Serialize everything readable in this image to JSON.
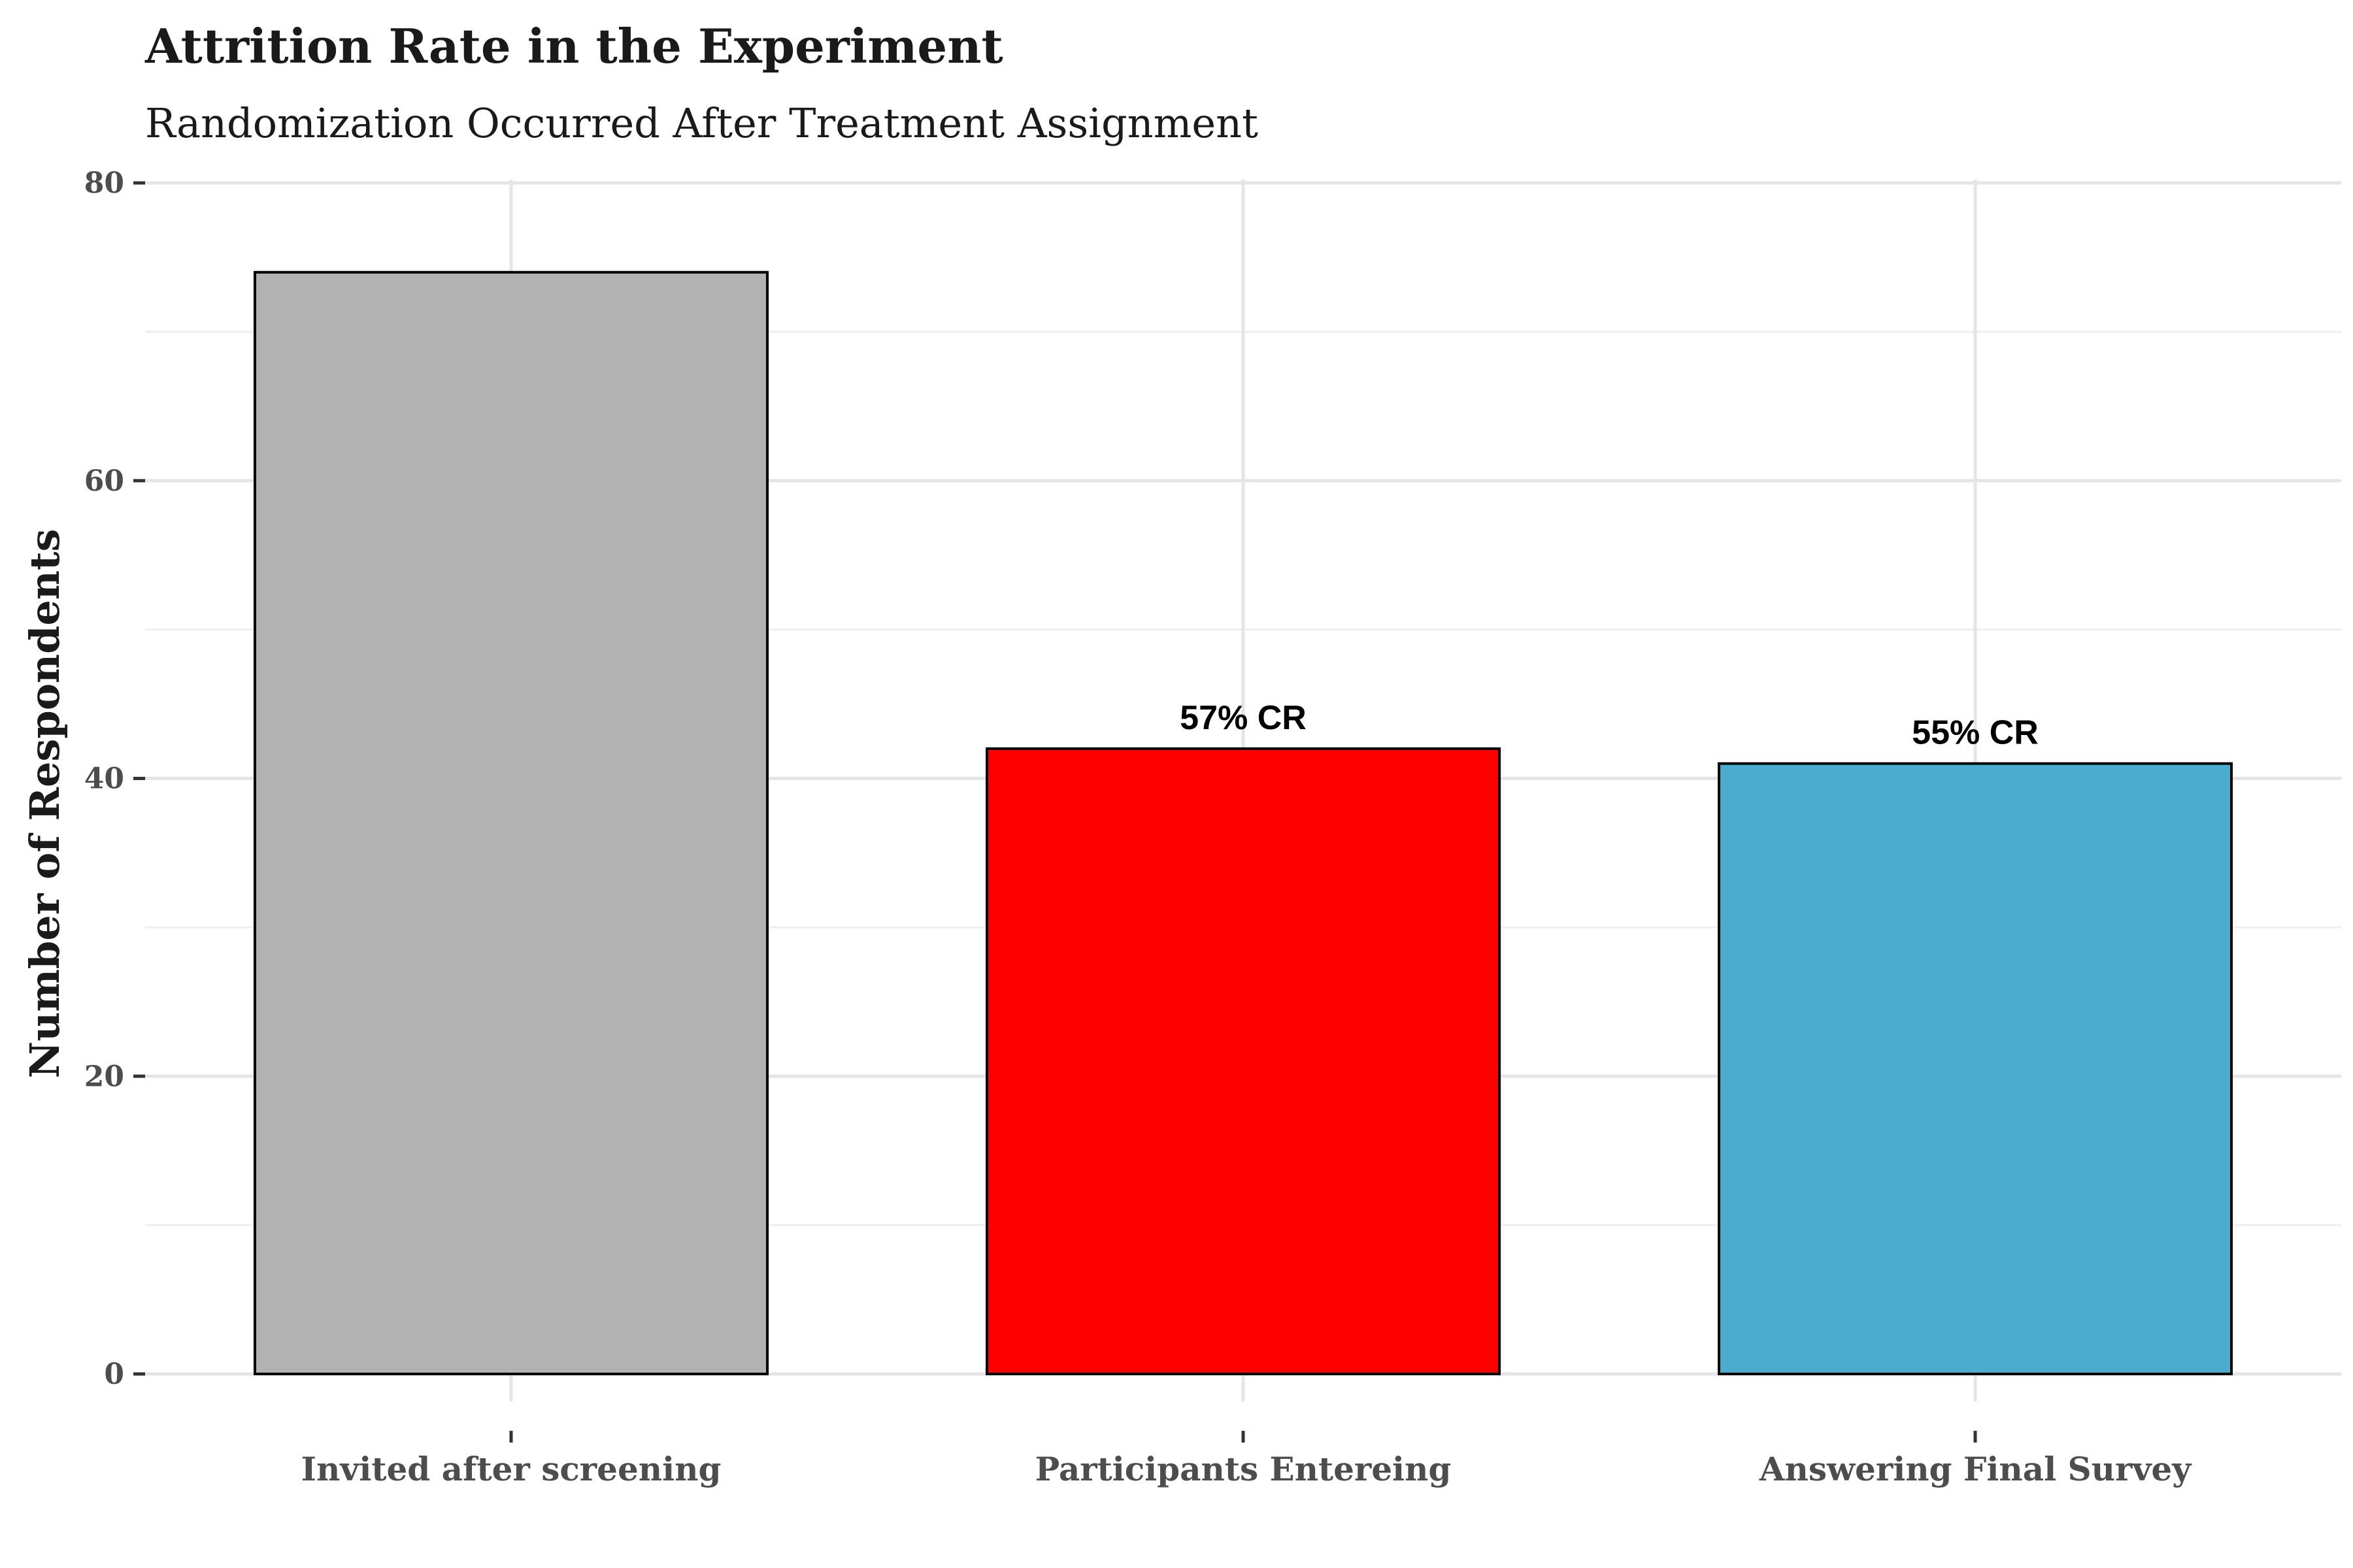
{
  "chart_data": {
    "type": "bar",
    "title": "Attrition Rate in the Experiment",
    "subtitle": "Randomization Occurred After Treatment Assignment",
    "xlabel": "",
    "ylabel": "Number of Respondents",
    "ylim": [
      0,
      80
    ],
    "yticks": [
      0,
      20,
      40,
      60,
      80
    ],
    "grid": true,
    "legend": "none",
    "categories": [
      "Invited after screening",
      "Participants Entereing",
      "Answering Final Survey"
    ],
    "values": [
      74,
      42,
      41
    ],
    "colors": [
      "#b2b2b2",
      "#ff0000",
      "#4bacce"
    ],
    "data_labels": [
      "",
      "57% CR",
      "55% CR"
    ]
  }
}
